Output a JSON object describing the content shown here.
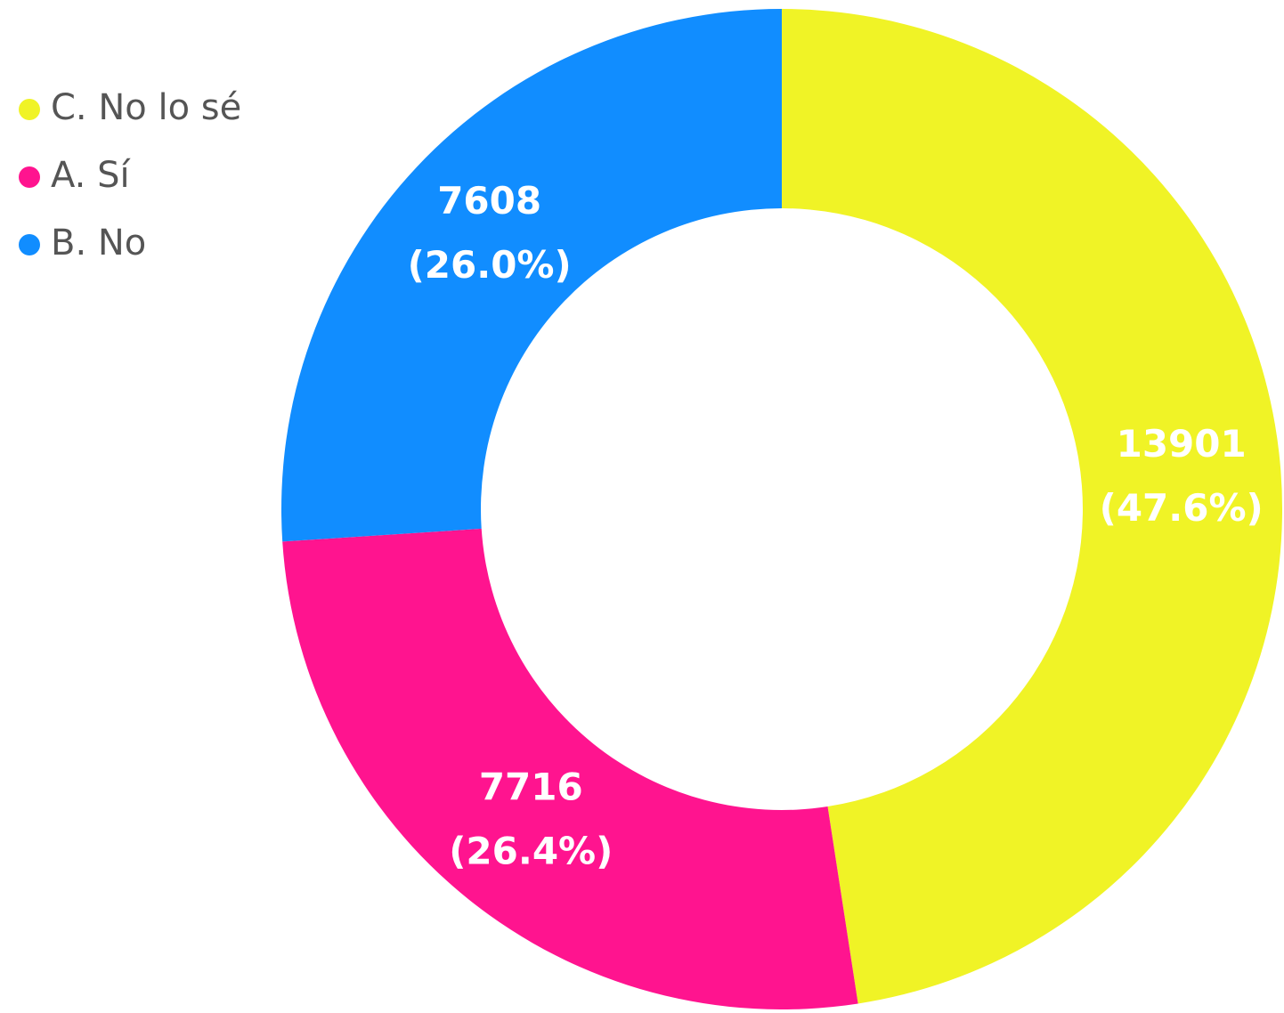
{
  "chart_data": {
    "type": "donut",
    "categories": [
      "C. No lo sé",
      "A. Sí",
      "B. No"
    ],
    "values": [
      13901,
      7716,
      7608
    ],
    "percent_labels": [
      "(47.6%)",
      "(26.4%)",
      "(26.0%)"
    ],
    "colors": [
      "#f0f326",
      "#ff148f",
      "#118dff"
    ],
    "legend": "top-left"
  }
}
